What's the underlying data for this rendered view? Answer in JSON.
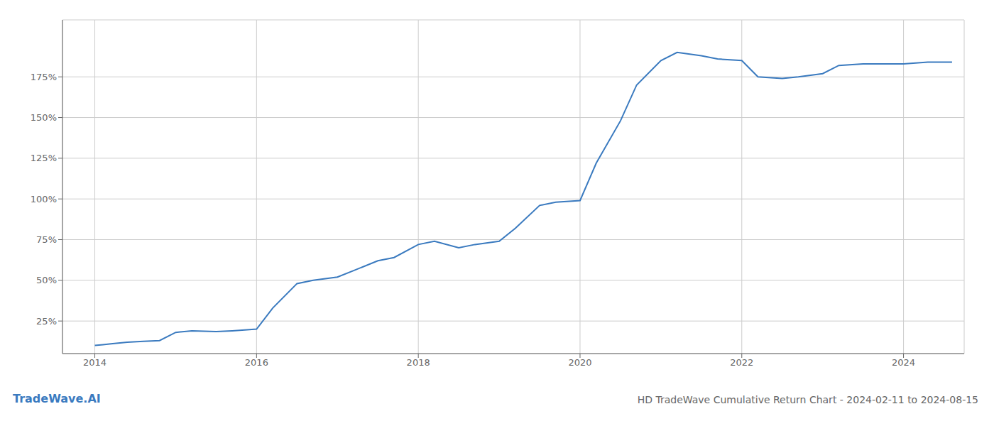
{
  "chart_data": {
    "type": "line",
    "title": "HD TradeWave Cumulative Return Chart - 2024-02-11 to 2024-08-15",
    "annotations": [
      "TradeWave.AI"
    ],
    "x": [
      2014.0,
      2014.1,
      2014.2,
      2014.4,
      2014.6,
      2014.8,
      2015.0,
      2015.2,
      2015.5,
      2015.7,
      2016.0,
      2016.2,
      2016.5,
      2016.7,
      2017.0,
      2017.2,
      2017.5,
      2017.7,
      2018.0,
      2018.2,
      2018.5,
      2018.7,
      2019.0,
      2019.2,
      2019.5,
      2019.7,
      2020.0,
      2020.2,
      2020.5,
      2020.7,
      2021.0,
      2021.2,
      2021.5,
      2021.7,
      2022.0,
      2022.2,
      2022.5,
      2022.7,
      2023.0,
      2023.2,
      2023.5,
      2023.7,
      2024.0,
      2024.3,
      2024.6
    ],
    "values": [
      10,
      10.5,
      11,
      12,
      12.5,
      13,
      18,
      19,
      18.5,
      19,
      20,
      33,
      48,
      50,
      52,
      56,
      62,
      64,
      72,
      74,
      70,
      72,
      74,
      82,
      96,
      98,
      99,
      122,
      148,
      170,
      185,
      190,
      188,
      186,
      185,
      175,
      174,
      175,
      177,
      182,
      183,
      183,
      183,
      184,
      184
    ],
    "color": "#3a7abf",
    "xlim": [
      2013.6,
      2024.75
    ],
    "xticks": [
      2014,
      2016,
      2018,
      2020,
      2022,
      2024
    ],
    "ylim": [
      5,
      210
    ],
    "yticks": [
      {
        "value": 25,
        "label": "25%"
      },
      {
        "value": 50,
        "label": "50%"
      },
      {
        "value": 75,
        "label": "75%"
      },
      {
        "value": 100,
        "label": "100%"
      },
      {
        "value": 125,
        "label": "125%"
      },
      {
        "value": 150,
        "label": "150%"
      },
      {
        "value": 175,
        "label": "175%"
      }
    ],
    "grid": true
  }
}
